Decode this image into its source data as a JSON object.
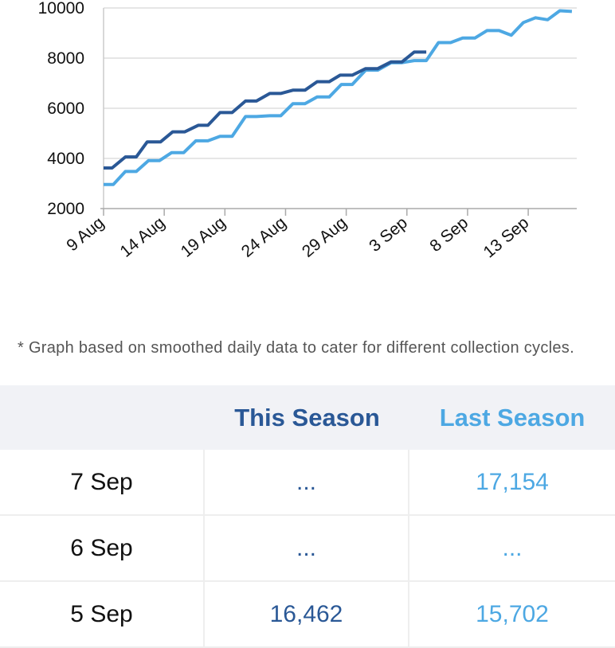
{
  "chart_data": {
    "type": "line",
    "title": "",
    "xlabel": "",
    "ylabel": "",
    "ylim": [
      2000,
      10000
    ],
    "yticks": [
      2000,
      4000,
      6000,
      8000,
      10000
    ],
    "xlim": [
      0,
      39
    ],
    "xticks": [
      {
        "pos": 0,
        "label": "9 Aug"
      },
      {
        "pos": 5,
        "label": "14 Aug"
      },
      {
        "pos": 10,
        "label": "19 Aug"
      },
      {
        "pos": 15,
        "label": "24 Aug"
      },
      {
        "pos": 20,
        "label": "29 Aug"
      },
      {
        "pos": 25,
        "label": "3 Sep"
      },
      {
        "pos": 30,
        "label": "8 Sep"
      },
      {
        "pos": 35,
        "label": "13 Sep"
      }
    ],
    "grid": true,
    "series": [
      {
        "name": "This Season",
        "color": "#2a5896",
        "points": [
          [
            0,
            3620
          ],
          [
            0.7,
            3620
          ],
          [
            1.8,
            4060
          ],
          [
            2.7,
            4060
          ],
          [
            3.6,
            4660
          ],
          [
            4.7,
            4660
          ],
          [
            5.7,
            5060
          ],
          [
            6.7,
            5060
          ],
          [
            7.8,
            5320
          ],
          [
            8.6,
            5320
          ],
          [
            9.6,
            5830
          ],
          [
            10.6,
            5830
          ],
          [
            11.7,
            6290
          ],
          [
            12.6,
            6290
          ],
          [
            13.7,
            6590
          ],
          [
            14.6,
            6590
          ],
          [
            15.6,
            6720
          ],
          [
            16.6,
            6720
          ],
          [
            17.6,
            7060
          ],
          [
            18.6,
            7060
          ],
          [
            19.5,
            7320
          ],
          [
            20.5,
            7320
          ],
          [
            21.6,
            7580
          ],
          [
            22.6,
            7580
          ],
          [
            23.7,
            7850
          ],
          [
            24.6,
            7850
          ],
          [
            25.6,
            8240
          ],
          [
            26.6,
            8240
          ]
        ]
      },
      {
        "name": "Last Season",
        "color": "#4da8e3",
        "points": [
          [
            0,
            2960
          ],
          [
            0.8,
            2960
          ],
          [
            1.8,
            3480
          ],
          [
            2.7,
            3480
          ],
          [
            3.7,
            3910
          ],
          [
            4.6,
            3910
          ],
          [
            5.6,
            4230
          ],
          [
            6.6,
            4230
          ],
          [
            7.6,
            4700
          ],
          [
            8.6,
            4700
          ],
          [
            9.6,
            4880
          ],
          [
            10.6,
            4880
          ],
          [
            11.7,
            5670
          ],
          [
            12.6,
            5670
          ],
          [
            13.7,
            5700
          ],
          [
            14.6,
            5700
          ],
          [
            15.6,
            6180
          ],
          [
            16.6,
            6180
          ],
          [
            17.6,
            6450
          ],
          [
            18.6,
            6450
          ],
          [
            19.6,
            6950
          ],
          [
            20.5,
            6950
          ],
          [
            21.6,
            7520
          ],
          [
            22.6,
            7520
          ],
          [
            23.7,
            7820
          ],
          [
            24.6,
            7820
          ],
          [
            25.6,
            7900
          ],
          [
            26.6,
            7900
          ],
          [
            27.6,
            8620
          ],
          [
            28.6,
            8620
          ],
          [
            29.6,
            8800
          ],
          [
            30.6,
            8800
          ],
          [
            31.6,
            9100
          ],
          [
            32.6,
            9100
          ],
          [
            33.6,
            8910
          ],
          [
            34.6,
            9420
          ],
          [
            35.6,
            9610
          ],
          [
            36.6,
            9530
          ],
          [
            37.6,
            9890
          ],
          [
            38.6,
            9860
          ]
        ]
      }
    ]
  },
  "footnote": "* Graph based on smoothed daily data to cater for different collection cycles.",
  "table": {
    "headers": [
      "",
      "This Season",
      "Last Season"
    ],
    "rows": [
      {
        "date": "7 Sep",
        "this_season": "...",
        "last_season": "17,154"
      },
      {
        "date": "6 Sep",
        "this_season": "...",
        "last_season": "..."
      },
      {
        "date": "5 Sep",
        "this_season": "16,462",
        "last_season": "15,702"
      }
    ]
  }
}
